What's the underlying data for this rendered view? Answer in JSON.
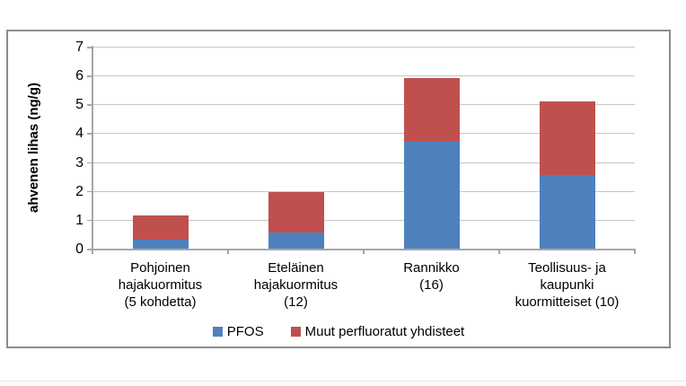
{
  "colors": {
    "pfos_blue": "#4F81BD",
    "muut_red": "#C0504D",
    "gridline": "#C6C6C6",
    "axis": "#A6A6A6",
    "frame_border": "#8C8C8C",
    "text": "#000000"
  },
  "y_axis": {
    "label": "ahvenen lihas (ng/g)",
    "tick_labels": [
      "0",
      "1",
      "2",
      "3",
      "4",
      "5",
      "6",
      "7"
    ]
  },
  "chart_data": {
    "type": "bar",
    "stacked": true,
    "title": "",
    "xlabel": "",
    "ylabel": "ahvenen lihas (ng/g)",
    "ylim": [
      0,
      7
    ],
    "ytick_step": 1,
    "grid": true,
    "legend_position": "bottom",
    "categories": [
      "Pohjoinen hajakuormitus (5 kohdetta)",
      "Eteläinen hajakuormitus (12)",
      "Rannikko (16)",
      "Teollisuus- ja kaupunki kuormitteiset (10)"
    ],
    "category_lines": [
      [
        "Pohjoinen",
        "hajakuormitus",
        "(5 kohdetta)"
      ],
      [
        "Eteläinen",
        "hajakuormitus",
        "(12)"
      ],
      [
        "Rannikko",
        "(16)"
      ],
      [
        "Teollisuus- ja",
        "kaupunki",
        "kuormitteiset (10)"
      ]
    ],
    "series": [
      {
        "name": "PFOS",
        "color": "#4F81BD",
        "values": [
          0.3,
          0.55,
          3.7,
          2.55
        ]
      },
      {
        "name": "Muut perfluoratut yhdisteet",
        "color": "#C0504D",
        "values": [
          0.85,
          1.4,
          2.2,
          2.55
        ]
      }
    ],
    "stacked_totals": [
      1.15,
      1.95,
      5.9,
      5.1
    ]
  }
}
